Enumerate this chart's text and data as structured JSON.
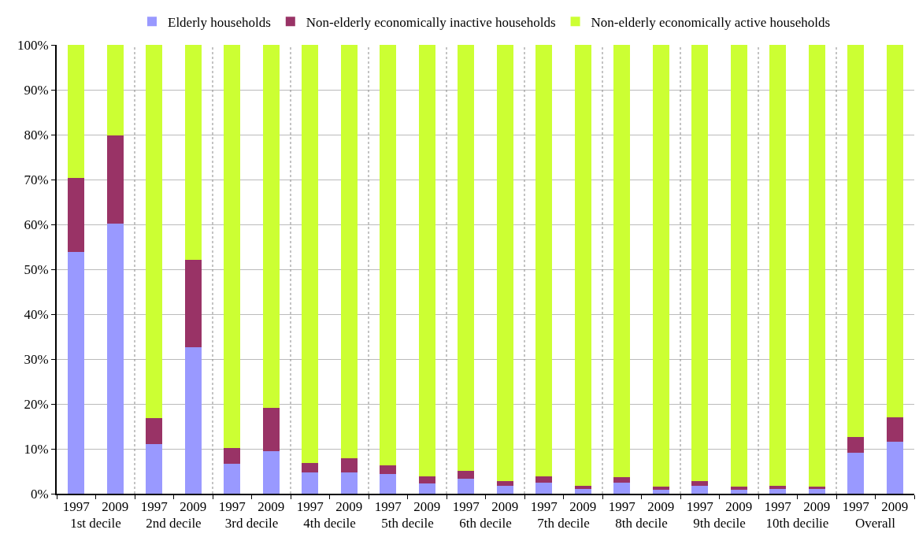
{
  "chart_data": {
    "type": "bar",
    "stacked": true,
    "categories": [
      [
        "1st decile",
        "1997"
      ],
      [
        null,
        "2009"
      ],
      [
        "2nd decile",
        "1997"
      ],
      [
        null,
        "2009"
      ],
      [
        "3rd decile",
        "1997"
      ],
      [
        null,
        "2009"
      ],
      [
        "4th decile",
        "1997"
      ],
      [
        null,
        "2009"
      ],
      [
        "5th decile",
        "1997"
      ],
      [
        null,
        "2009"
      ],
      [
        "6th decile",
        "1997"
      ],
      [
        null,
        "2009"
      ],
      [
        "7th decile",
        "1997"
      ],
      [
        null,
        "2009"
      ],
      [
        "8th decile",
        "1997"
      ],
      [
        null,
        "2009"
      ],
      [
        "9th decile",
        "1997"
      ],
      [
        null,
        "2009"
      ],
      [
        "10th decilie",
        "1997"
      ],
      [
        null,
        "2009"
      ],
      [
        "Overall",
        "1997"
      ],
      [
        null,
        "2009"
      ]
    ],
    "series": [
      {
        "name": "Elderly households",
        "color": "#9999ff",
        "values": [
          53.9,
          60.2,
          11.1,
          32.6,
          6.7,
          9.5,
          4.7,
          4.7,
          4.4,
          2.3,
          3.3,
          1.8,
          2.5,
          1.1,
          2.5,
          0.9,
          1.7,
          0.9,
          1.1,
          1.2,
          9.2,
          11.5
        ]
      },
      {
        "name": "Non-elderly economically inactive households",
        "color": "#993366",
        "values": [
          16.5,
          19.6,
          5.7,
          19.5,
          3.5,
          9.6,
          2.1,
          3.2,
          1.9,
          1.6,
          1.8,
          1.0,
          1.4,
          0.7,
          1.2,
          0.6,
          1.1,
          0.6,
          0.7,
          0.3,
          3.5,
          5.5
        ]
      },
      {
        "name": "Non-elderly economically active households",
        "color": "#ccff33",
        "values": [
          29.6,
          20.2,
          83.2,
          47.9,
          89.8,
          80.9,
          93.2,
          92.1,
          93.7,
          96.1,
          94.9,
          97.2,
          96.1,
          98.2,
          96.3,
          98.5,
          97.2,
          98.5,
          98.2,
          98.5,
          87.3,
          83.0
        ]
      }
    ],
    "ylim": [
      0,
      100
    ],
    "yticks": [
      {
        "value": 0,
        "label": "0%"
      },
      {
        "value": 10,
        "label": "10%"
      },
      {
        "value": 20,
        "label": "20%"
      },
      {
        "value": 30,
        "label": "30%"
      },
      {
        "value": 40,
        "label": "40%"
      },
      {
        "value": 50,
        "label": "50%"
      },
      {
        "value": 60,
        "label": "60%"
      },
      {
        "value": 70,
        "label": "70%"
      },
      {
        "value": 80,
        "label": "80%"
      },
      {
        "value": 90,
        "label": "90%"
      },
      {
        "value": 100,
        "label": "100%"
      }
    ],
    "grid": "y",
    "legend": "top"
  }
}
